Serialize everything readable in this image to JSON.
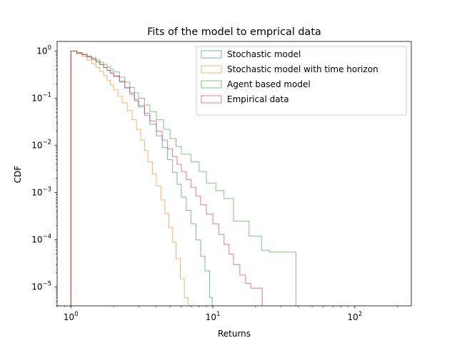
{
  "chart_data": {
    "type": "line",
    "chart_kind": "step histogram (CDF)",
    "title": "Fits of the model to emprical data",
    "xlabel": "Returns",
    "ylabel": "CDF",
    "xscale": "log",
    "yscale": "log",
    "xlim": [
      0.8,
      250
    ],
    "ylim": [
      4e-06,
      1.6
    ],
    "x_ticks": [
      {
        "value": 1,
        "base": "10",
        "exp": "0"
      },
      {
        "value": 10,
        "base": "10",
        "exp": "1"
      },
      {
        "value": 100,
        "base": "10",
        "exp": "2"
      }
    ],
    "y_ticks": [
      {
        "value": 1e-05,
        "base": "10",
        "exp": "−5"
      },
      {
        "value": 0.0001,
        "base": "10",
        "exp": "−4"
      },
      {
        "value": 0.001,
        "base": "10",
        "exp": "−3"
      },
      {
        "value": 0.01,
        "base": "10",
        "exp": "−2"
      },
      {
        "value": 0.1,
        "base": "10",
        "exp": "−1"
      },
      {
        "value": 1,
        "base": "10",
        "exp": "0"
      }
    ],
    "grid": false,
    "legend_position": "top-right",
    "series": [
      {
        "name": "Stochastic model",
        "color": "#1f77b4",
        "points": [
          [
            1.0,
            1.0
          ],
          [
            1.1,
            0.92
          ],
          [
            1.2,
            0.84
          ],
          [
            1.3,
            0.76
          ],
          [
            1.4,
            0.68
          ],
          [
            1.5,
            0.6
          ],
          [
            1.6,
            0.52
          ],
          [
            1.7,
            0.45
          ],
          [
            1.8,
            0.39
          ],
          [
            1.9,
            0.34
          ],
          [
            2.0,
            0.29
          ],
          [
            2.2,
            0.22
          ],
          [
            2.4,
            0.165
          ],
          [
            2.6,
            0.12
          ],
          [
            2.8,
            0.088
          ],
          [
            3.0,
            0.065
          ],
          [
            3.3,
            0.043
          ],
          [
            3.6,
            0.028
          ],
          [
            4.0,
            0.016
          ],
          [
            4.4,
            0.009
          ],
          [
            4.8,
            0.005
          ],
          [
            5.2,
            0.0027
          ],
          [
            5.6,
            0.0015
          ],
          [
            6.0,
            0.0008
          ],
          [
            6.5,
            0.00042
          ],
          [
            7.0,
            0.00022
          ],
          [
            7.6,
            0.0001
          ],
          [
            8.2,
            4.5e-05
          ],
          [
            8.8,
            2.2e-05
          ],
          [
            9.5,
            6e-06
          ],
          [
            9.9,
            4e-06
          ]
        ]
      },
      {
        "name": "Stochastic model with time horizon",
        "color": "#ff7f0e",
        "points": [
          [
            1.0,
            1.0
          ],
          [
            1.1,
            0.88
          ],
          [
            1.2,
            0.76
          ],
          [
            1.3,
            0.64
          ],
          [
            1.4,
            0.54
          ],
          [
            1.5,
            0.45
          ],
          [
            1.6,
            0.37
          ],
          [
            1.7,
            0.3
          ],
          [
            1.8,
            0.24
          ],
          [
            1.9,
            0.19
          ],
          [
            2.0,
            0.15
          ],
          [
            2.15,
            0.11
          ],
          [
            2.3,
            0.08
          ],
          [
            2.5,
            0.055
          ],
          [
            2.7,
            0.035
          ],
          [
            2.9,
            0.022
          ],
          [
            3.1,
            0.013
          ],
          [
            3.3,
            0.0078
          ],
          [
            3.5,
            0.0045
          ],
          [
            3.75,
            0.0025
          ],
          [
            4.0,
            0.0014
          ],
          [
            4.3,
            0.0007
          ],
          [
            4.6,
            0.00036
          ],
          [
            4.9,
            0.00018
          ],
          [
            5.2,
            9e-05
          ],
          [
            5.5,
            4e-05
          ],
          [
            5.9,
            1.5e-05
          ],
          [
            6.3,
            6e-06
          ],
          [
            6.7,
            4e-06
          ]
        ]
      },
      {
        "name": "Agent based model",
        "color": "#2ca02c",
        "points": [
          [
            1.0,
            1.0
          ],
          [
            1.1,
            0.93
          ],
          [
            1.2,
            0.86
          ],
          [
            1.3,
            0.79
          ],
          [
            1.4,
            0.72
          ],
          [
            1.5,
            0.65
          ],
          [
            1.6,
            0.58
          ],
          [
            1.7,
            0.52
          ],
          [
            1.8,
            0.46
          ],
          [
            1.9,
            0.41
          ],
          [
            2.0,
            0.36
          ],
          [
            2.2,
            0.28
          ],
          [
            2.4,
            0.22
          ],
          [
            2.6,
            0.17
          ],
          [
            2.8,
            0.13
          ],
          [
            3.0,
            0.1
          ],
          [
            3.3,
            0.072
          ],
          [
            3.6,
            0.052
          ],
          [
            4.0,
            0.035
          ],
          [
            4.5,
            0.022
          ],
          [
            5.0,
            0.014
          ],
          [
            5.5,
            0.0095
          ],
          [
            6.0,
            0.0065
          ],
          [
            7.0,
            0.0045
          ],
          [
            8.0,
            0.0028
          ],
          [
            9.0,
            0.0016
          ],
          [
            10.5,
            0.0011
          ],
          [
            12.0,
            0.00075
          ],
          [
            14.0,
            0.00025
          ],
          [
            16.0,
            0.00025
          ],
          [
            18.0,
            0.00012
          ],
          [
            20.0,
            0.00012
          ],
          [
            22.0,
            6e-05
          ],
          [
            25.0,
            5.5e-05
          ],
          [
            30.0,
            5.5e-05
          ],
          [
            38.0,
            5.5e-05
          ],
          [
            38.5,
            4e-06
          ]
        ]
      },
      {
        "name": "Empirical data",
        "color": "#d62728",
        "points": [
          [
            1.0,
            1.0
          ],
          [
            1.1,
            0.91
          ],
          [
            1.2,
            0.83
          ],
          [
            1.3,
            0.75
          ],
          [
            1.4,
            0.67
          ],
          [
            1.5,
            0.59
          ],
          [
            1.6,
            0.52
          ],
          [
            1.7,
            0.45
          ],
          [
            1.8,
            0.39
          ],
          [
            1.9,
            0.34
          ],
          [
            2.0,
            0.3
          ],
          [
            2.2,
            0.23
          ],
          [
            2.4,
            0.17
          ],
          [
            2.6,
            0.13
          ],
          [
            2.8,
            0.095
          ],
          [
            3.0,
            0.07
          ],
          [
            3.3,
            0.048
          ],
          [
            3.6,
            0.033
          ],
          [
            4.0,
            0.02
          ],
          [
            4.4,
            0.013
          ],
          [
            4.8,
            0.0085
          ],
          [
            5.2,
            0.0058
          ],
          [
            5.6,
            0.004
          ],
          [
            6.0,
            0.0028
          ],
          [
            6.5,
            0.0019
          ],
          [
            7.0,
            0.0013
          ],
          [
            7.6,
            0.00085
          ],
          [
            8.2,
            0.00055
          ],
          [
            9.0,
            0.00035
          ],
          [
            10.0,
            0.00022
          ],
          [
            11.0,
            0.00013
          ],
          [
            12.0,
            8e-05
          ],
          [
            13.0,
            5e-05
          ],
          [
            14.0,
            3e-05
          ],
          [
            15.5,
            1.8e-05
          ],
          [
            17.0,
            1.2e-05
          ],
          [
            18.5,
            9.5e-06
          ],
          [
            20.0,
            9.5e-06
          ],
          [
            22.0,
            9.5e-06
          ],
          [
            22.3,
            4e-06
          ]
        ]
      }
    ]
  }
}
